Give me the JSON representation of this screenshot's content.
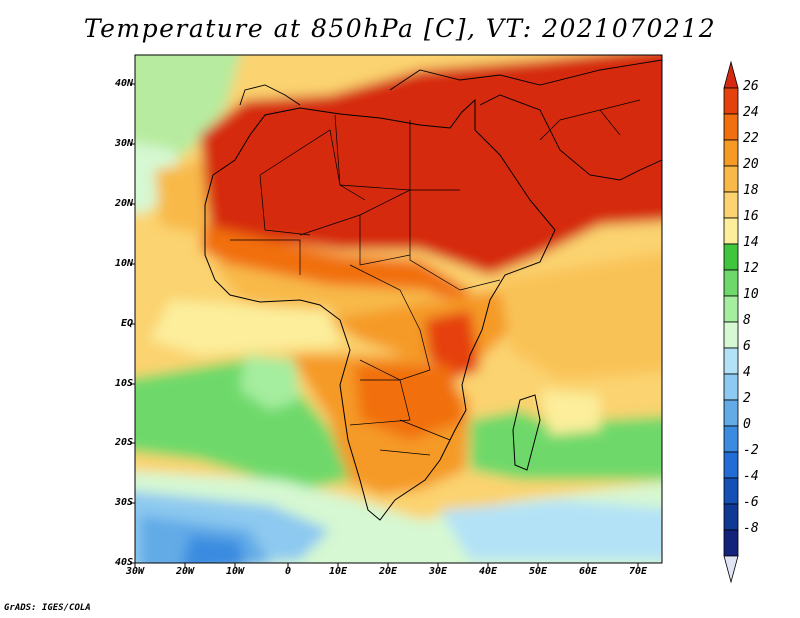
{
  "title": "Temperature at 850hPa [C], VT: 2021070212",
  "credit": "GrADS: IGES/COLA",
  "map": {
    "lon_range": [
      -30,
      75
    ],
    "lat_range": [
      -40,
      45
    ],
    "lon_labels": [
      "30W",
      "20W",
      "10W",
      "0",
      "10E",
      "20E",
      "30E",
      "40E",
      "50E",
      "60E",
      "70E"
    ],
    "lat_labels": [
      "40N",
      "30N",
      "20N",
      "10N",
      "EQ",
      "10S",
      "20S",
      "30S",
      "40S"
    ]
  },
  "colorbar": {
    "labels": [
      "26",
      "24",
      "22",
      "20",
      "18",
      "16",
      "14",
      "12",
      "10",
      "8",
      "6",
      "4",
      "2",
      "0",
      "-2",
      "-4",
      "-6",
      "-8"
    ],
    "colors": [
      "#d52a11",
      "#e5410c",
      "#f16f0f",
      "#f59a25",
      "#f8b948",
      "#fbd370",
      "#fcee9b",
      "#3fc63c",
      "#6ed96a",
      "#a5ed9f",
      "#d6f8d2",
      "#b3e2f7",
      "#8dc9f0",
      "#62abe7",
      "#3b8ce0",
      "#226cd5",
      "#1450b6",
      "#0e3994",
      "#13227a",
      "#e1e4f5"
    ]
  },
  "colors": {
    "land_hot": "#d52a11",
    "ocean_warm": "#f9c256",
    "southern_cool": "#62abe7",
    "coast": "#000000"
  }
}
